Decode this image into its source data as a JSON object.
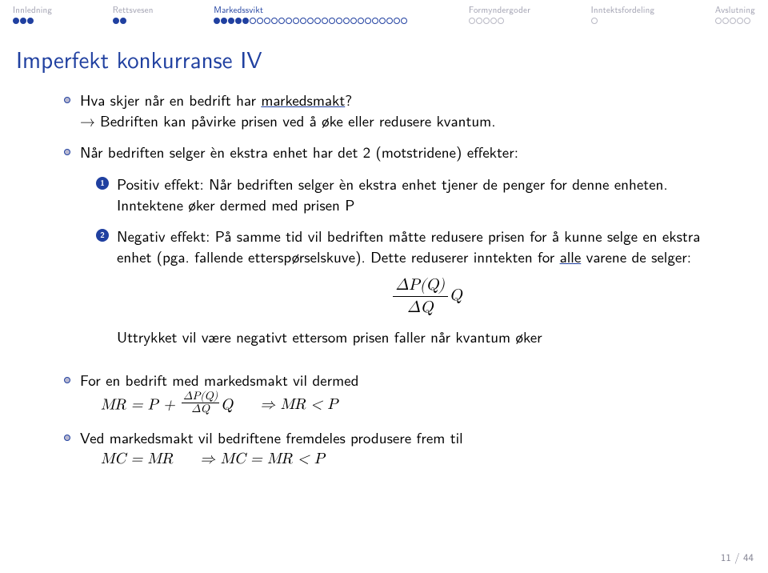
{
  "nav": [
    {
      "label": "Innledning",
      "dots": 3,
      "filled": 3,
      "active": false
    },
    {
      "label": "Rettsvesen",
      "dots": 2,
      "filled": 2,
      "active": false
    },
    {
      "label": "Markedssvikt",
      "dots": 27,
      "filled": 5,
      "active": true
    },
    {
      "label": "Formyndergoder",
      "dots": 5,
      "filled": 0,
      "active": false
    },
    {
      "label": "Inntektsfordeling",
      "dots": 1,
      "filled": 0,
      "active": false
    },
    {
      "label": "Avslutning",
      "dots": 5,
      "filled": 0,
      "active": false
    }
  ],
  "title": "Imperfekt konkurranse IV",
  "bullet1_q": "Hva skjer når en bedrift har ",
  "bullet1_qword": "markedsmakt",
  "bullet1_q_end": "?",
  "bullet1_a": "Bedriften kan påvirke prisen ved å øke eller redusere kvantum.",
  "bullet2": "Når bedriften selger èn ekstra enhet har det 2 (motstridene) effekter:",
  "enum1": "Positiv effekt: Når bedriften selger èn ekstra enhet tjener de penger for denne enheten. Inntektene øker dermed med prisen P",
  "enum2a": "Negativ effekt: På samme tid vil bedriften måtte redusere prisen for å kunne selge en ekstra enhet (pga. fallende etterspørselskuve). Dette reduserer inntekten for ",
  "enum2a_u": "alle",
  "enum2a_end": " varene de selger:",
  "formula_num": "ΔP(Q)",
  "formula_den": "ΔQ",
  "formula_tail": "Q",
  "enum2b": "Uttrykket vil være negativt ettersom prisen faller når kvantum øker",
  "bullet3": "For en bedrift med markedsmakt vil dermed",
  "mr_eq": "MR = P + ",
  "mr_frac_num": "ΔP(Q)",
  "mr_frac_den": "ΔQ",
  "mr_tail": "Q",
  "mr_implies": "⇒ MR < P",
  "bullet4": "Ved markedsmakt vil bedriftene fremdeles produsere frem til",
  "mcmr": "MC = MR",
  "mcmr_imp": "⇒ MC = MR < P",
  "pagenum": "11 / 44"
}
